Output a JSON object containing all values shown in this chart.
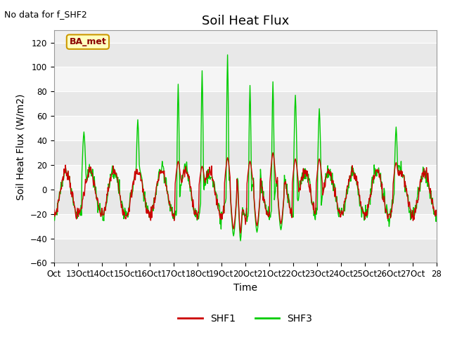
{
  "title": "Soil Heat Flux",
  "top_left_note": "No data for f_SHF2",
  "ylabel": "Soil Heat Flux (W/m2)",
  "xlabel": "Time",
  "legend_label": "BA_met",
  "series": [
    "SHF1",
    "SHF3"
  ],
  "series_colors": [
    "#cc0000",
    "#00cc00"
  ],
  "ylim": [
    -60,
    130
  ],
  "yticks": [
    -60,
    -40,
    -20,
    0,
    20,
    40,
    60,
    80,
    100,
    120
  ],
  "fig_bg_color": "#ffffff",
  "plot_bg_color": "#f0f0f0",
  "band_colors": [
    "#e8e8e8",
    "#f5f5f5"
  ],
  "x_tick_labels": [
    "Oct",
    "13Oct",
    "14Oct",
    "15Oct",
    "16Oct",
    "17Oct",
    "18Oct",
    "19Oct",
    "20Oct",
    "21Oct",
    "22Oct",
    "23Oct",
    "24Oct",
    "25Oct",
    "26Oct",
    "27Oct",
    "28"
  ],
  "title_fontsize": 13,
  "axis_label_fontsize": 10,
  "tick_fontsize": 8.5,
  "note_fontsize": 9,
  "legend_fontsize": 10
}
